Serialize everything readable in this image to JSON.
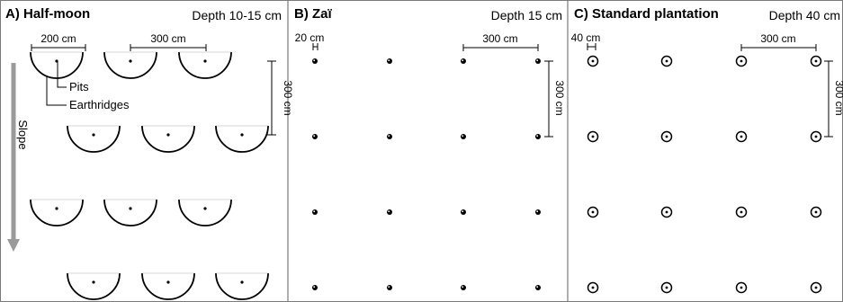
{
  "panels": [
    {
      "id": "half-moon",
      "title": "A) Half-moon",
      "depth": "Depth 10-15 cm",
      "dims": {
        "width": "200 cm",
        "spacing": "300 cm",
        "vertical": "300 cm"
      },
      "labels": {
        "pits": "Pits",
        "earthridges": "Earthridges",
        "slope": "Slope"
      },
      "grid": {
        "rows": 4,
        "cols": 3
      }
    },
    {
      "id": "zai",
      "title": "B) Zaï",
      "depth": "Depth 15 cm",
      "dims": {
        "width": "20 cm",
        "spacing": "300 cm",
        "vertical": "300 cm"
      },
      "grid": {
        "rows": 4,
        "cols": 4
      }
    },
    {
      "id": "standard",
      "title": "C) Standard plantation",
      "depth": "Depth 40 cm",
      "dims": {
        "width": "40 cm",
        "spacing": "300 cm",
        "vertical": "300 cm"
      },
      "grid": {
        "rows": 4,
        "cols": 4
      }
    }
  ],
  "colors": {
    "line": "#000000",
    "border": "#7a7a7a",
    "slope_arrow": "#9a9a9a",
    "background": "#ffffff"
  }
}
